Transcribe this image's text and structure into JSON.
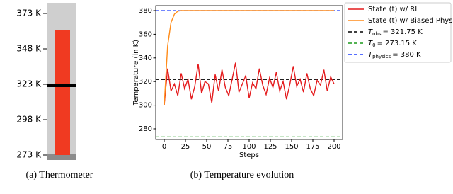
{
  "chart_data": [
    {
      "type": "thermometer",
      "caption": "(a) Thermometer",
      "values": [
        361
      ],
      "color": "#f03a21",
      "marker_value": 322,
      "marker_color": "#000000",
      "ylim": [
        269.5,
        380.5
      ],
      "yticks": [
        {
          "value": 273,
          "label": "273 K"
        },
        {
          "value": 298,
          "label": "298 K"
        },
        {
          "value": 323,
          "label": "323 K"
        },
        {
          "value": 348,
          "label": "348 K"
        },
        {
          "value": 373,
          "label": "373 K"
        }
      ]
    },
    {
      "type": "line",
      "caption": "(b) Temperature evolution",
      "x_label": "Steps",
      "y_label": "Temperature (in K)",
      "x": [
        0,
        4,
        8,
        12,
        16,
        20,
        24,
        28,
        32,
        36,
        40,
        44,
        48,
        52,
        56,
        60,
        64,
        68,
        72,
        76,
        80,
        84,
        88,
        92,
        96,
        100,
        104,
        108,
        112,
        116,
        120,
        124,
        128,
        132,
        136,
        140,
        144,
        148,
        152,
        156,
        160,
        164,
        168,
        172,
        176,
        180,
        184,
        188,
        192,
        196,
        200
      ],
      "series": [
        {
          "name": "State (t) w/ RL",
          "color": "#e41a1c",
          "values": [
            300,
            331,
            312,
            318,
            308,
            327,
            314,
            322,
            305,
            316,
            335,
            310,
            320,
            318,
            302,
            326,
            312,
            330,
            315,
            308,
            322,
            336,
            311,
            318,
            325,
            306,
            319,
            314,
            331,
            317,
            309,
            323,
            315,
            328,
            312,
            320,
            305,
            318,
            333,
            316,
            322,
            311,
            327,
            314,
            308,
            321,
            317,
            330,
            312,
            324,
            318
          ]
        },
        {
          "name": "State (t) w/ Biased Physics",
          "color": "#ff8c1a",
          "values": [
            300,
            350,
            370,
            377,
            379.5,
            380,
            380,
            380,
            380,
            380,
            380,
            380,
            380,
            380,
            380,
            380,
            380,
            380,
            380,
            380,
            380,
            380,
            380,
            380,
            380,
            380,
            380,
            380,
            380,
            380,
            380,
            380,
            380,
            380,
            380,
            380,
            380,
            380,
            380,
            380,
            380,
            380,
            380,
            380,
            380,
            380,
            380,
            380,
            380,
            380,
            380
          ]
        }
      ],
      "hlines": [
        {
          "name": "T",
          "subscript": "obs",
          "suffix": "= 321.75 K",
          "value": 321.75,
          "color": "#000000"
        },
        {
          "name": "T",
          "subscript": "0",
          "suffix": "= 273.15 K",
          "value": 273.15,
          "color": "#1a9a1a"
        },
        {
          "name": "T",
          "subscript": "physics",
          "suffix": "= 380 K",
          "value": 380,
          "color": "#1f3fff"
        }
      ],
      "xlim": [
        -10,
        210
      ],
      "xticks": [
        0,
        25,
        50,
        75,
        100,
        125,
        150,
        175,
        200
      ],
      "ylim": [
        271,
        384.2
      ],
      "yticks": [
        280,
        300,
        320,
        340,
        360,
        380
      ]
    }
  ]
}
